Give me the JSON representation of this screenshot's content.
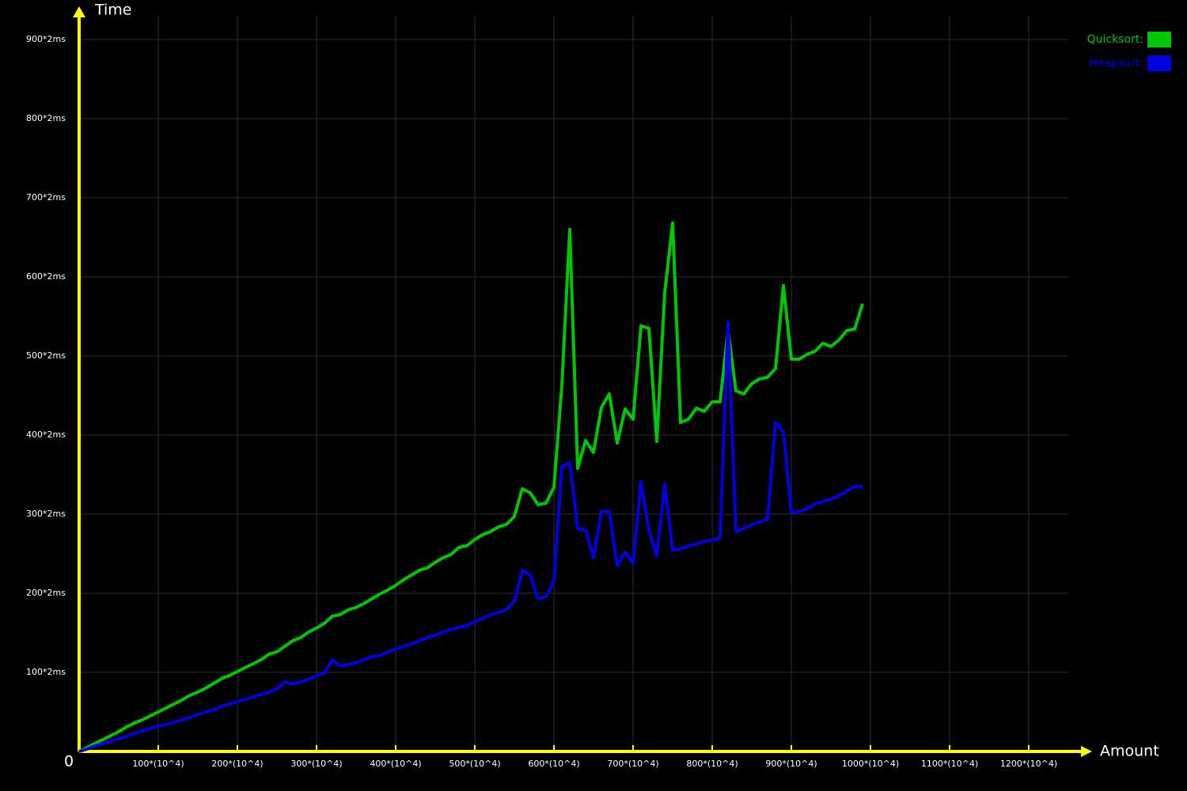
{
  "chart_data": {
    "type": "line",
    "y_axis_label": "Time",
    "x_axis_label": "Amount",
    "origin_label": "0",
    "xlim": [
      0,
      1250
    ],
    "ylim": [
      0,
      900
    ],
    "grid": true,
    "legend": "top-right",
    "xticks": [
      {
        "value": 100,
        "label": "100*(10^4)"
      },
      {
        "value": 200,
        "label": "200*(10^4)"
      },
      {
        "value": 300,
        "label": "300*(10^4)"
      },
      {
        "value": 400,
        "label": "400*(10^4)"
      },
      {
        "value": 500,
        "label": "500*(10^4)"
      },
      {
        "value": 600,
        "label": "600*(10^4)"
      },
      {
        "value": 700,
        "label": "700*(10^4)"
      },
      {
        "value": 800,
        "label": "800*(10^4)"
      },
      {
        "value": 900,
        "label": "900*(10^4)"
      },
      {
        "value": 1000,
        "label": "1000*(10^4)"
      },
      {
        "value": 1100,
        "label": "1100*(10^4)"
      },
      {
        "value": 1200,
        "label": "1200*(10^4)"
      }
    ],
    "yticks": [
      {
        "value": 100,
        "label": "100*2ms"
      },
      {
        "value": 200,
        "label": "200*2ms"
      },
      {
        "value": 300,
        "label": "300*2ms"
      },
      {
        "value": 400,
        "label": "400*2ms"
      },
      {
        "value": 500,
        "label": "500*2ms"
      },
      {
        "value": 600,
        "label": "600*2ms"
      },
      {
        "value": 700,
        "label": "700*2ms"
      },
      {
        "value": 800,
        "label": "800*2ms"
      },
      {
        "value": 900,
        "label": "900*2ms"
      }
    ],
    "x": [
      0,
      10,
      20,
      30,
      40,
      50,
      60,
      70,
      80,
      90,
      100,
      110,
      120,
      130,
      140,
      150,
      160,
      170,
      180,
      190,
      200,
      210,
      220,
      230,
      240,
      250,
      260,
      270,
      280,
      290,
      300,
      310,
      320,
      330,
      340,
      350,
      360,
      370,
      380,
      390,
      400,
      410,
      420,
      430,
      440,
      450,
      460,
      470,
      480,
      490,
      500,
      510,
      520,
      530,
      540,
      550,
      560,
      570,
      580,
      590,
      600,
      610,
      620,
      630,
      640,
      650,
      660,
      670,
      680,
      690,
      700,
      710,
      720,
      730,
      740,
      750,
      760,
      770,
      780,
      790,
      800,
      810,
      820,
      830,
      840,
      850,
      860,
      870,
      880,
      890,
      900,
      910,
      920,
      930,
      940,
      950,
      960,
      970,
      980,
      990
    ],
    "series": [
      {
        "name": "Quicksort:",
        "color": "#00c800",
        "values": [
          0,
          5,
          10,
          15,
          20,
          25,
          31,
          36,
          40,
          45,
          50,
          55,
          60,
          65,
          71,
          75,
          80,
          86,
          92,
          96,
          101,
          106,
          111,
          116,
          123,
          126,
          133,
          140,
          144,
          151,
          156,
          162,
          171,
          173,
          179,
          182,
          187,
          193,
          199,
          204,
          210,
          217,
          223,
          229,
          232,
          239,
          245,
          249,
          258,
          260,
          268,
          274,
          278,
          284,
          287,
          297,
          332,
          327,
          312,
          314,
          334,
          462,
          660,
          358,
          393,
          378,
          435,
          452,
          390,
          433,
          420,
          538,
          535,
          392,
          580,
          668,
          416,
          420,
          434,
          430,
          442,
          442,
          533,
          456,
          452,
          465,
          471,
          473,
          484,
          589,
          496,
          496,
          502,
          506,
          516,
          512,
          520,
          532,
          534,
          566
        ]
      },
      {
        "name": "Heapsort:",
        "color": "#0000e0",
        "values": [
          0,
          3,
          7,
          10,
          13,
          16,
          19,
          23,
          26,
          29,
          32,
          34,
          37,
          40,
          43,
          47,
          50,
          53,
          57,
          60,
          63,
          66,
          69,
          72,
          75,
          79,
          88,
          85,
          88,
          91,
          96,
          99,
          116,
          108,
          110,
          112,
          116,
          120,
          121,
          126,
          129,
          133,
          136,
          140,
          144,
          147,
          151,
          154,
          157,
          159,
          164,
          168,
          173,
          176,
          179,
          190,
          229,
          223,
          193,
          196,
          215,
          360,
          365,
          282,
          280,
          245,
          304,
          303,
          235,
          252,
          238,
          341,
          280,
          247,
          338,
          255,
          256,
          260,
          262,
          266,
          267,
          270,
          543,
          278,
          282,
          287,
          290,
          293,
          416,
          404,
          302,
          303,
          307,
          313,
          316,
          319,
          323,
          329,
          335,
          335
        ]
      }
    ]
  }
}
